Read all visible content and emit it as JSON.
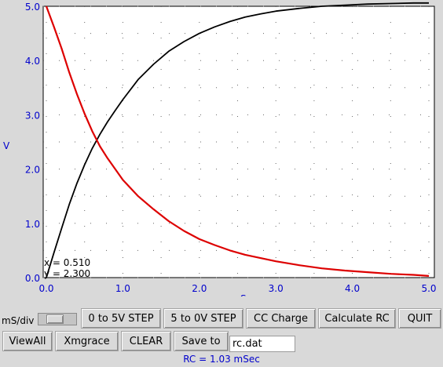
{
  "chart_data": {
    "type": "line",
    "xlabel": "mS",
    "ylabel": "V",
    "xlim": [
      0,
      5
    ],
    "ylim": [
      0,
      5
    ],
    "x_ticks": [
      "0.0",
      "1.0",
      "2.0",
      "3.0",
      "4.0",
      "5.0"
    ],
    "y_ticks": [
      "0.0",
      "1.0",
      "2.0",
      "3.0",
      "4.0",
      "5.0"
    ],
    "grid": true,
    "series": [
      {
        "color": "#000000",
        "x": [
          0.0,
          0.1,
          0.2,
          0.3,
          0.4,
          0.5,
          0.6,
          0.7,
          0.8,
          0.9,
          1.0,
          1.2,
          1.4,
          1.6,
          1.8,
          2.0,
          2.2,
          2.4,
          2.6,
          2.8,
          3.0,
          3.3,
          3.6,
          3.9,
          4.2,
          4.5,
          4.8,
          5.0
        ],
        "y": [
          0.0,
          0.46,
          0.91,
          1.35,
          1.74,
          2.08,
          2.38,
          2.64,
          2.87,
          3.08,
          3.28,
          3.65,
          3.93,
          4.17,
          4.35,
          4.5,
          4.62,
          4.72,
          4.8,
          4.86,
          4.91,
          4.96,
          5.0,
          5.02,
          5.04,
          5.05,
          5.06,
          5.06
        ]
      },
      {
        "color": "#dd0000",
        "x": [
          0.0,
          0.1,
          0.2,
          0.3,
          0.4,
          0.5,
          0.6,
          0.7,
          0.8,
          0.9,
          1.0,
          1.2,
          1.4,
          1.6,
          1.8,
          2.0,
          2.2,
          2.4,
          2.6,
          2.8,
          3.0,
          3.3,
          3.6,
          3.9,
          4.2,
          4.5,
          4.8,
          5.0
        ],
        "y": [
          5.0,
          4.62,
          4.22,
          3.78,
          3.38,
          3.02,
          2.7,
          2.42,
          2.2,
          2.0,
          1.8,
          1.5,
          1.26,
          1.04,
          0.86,
          0.71,
          0.6,
          0.5,
          0.42,
          0.36,
          0.3,
          0.23,
          0.17,
          0.13,
          0.1,
          0.07,
          0.05,
          0.03
        ]
      }
    ]
  },
  "readout": {
    "x_text": "x = 0.510",
    "y_text": "y = 2.300"
  },
  "controls": {
    "ms_div_label": "mS/div",
    "step_up": "0 to 5V STEP",
    "step_down": "5 to 0V STEP",
    "cc_charge": "CC Charge",
    "calc_rc": "Calculate RC",
    "quit": "QUIT",
    "view_all": "ViewAll",
    "xmgrace": "Xmgrace",
    "clear": "CLEAR",
    "save_to": "Save to",
    "filename": "rc.dat"
  },
  "result": {
    "rc_text": "RC =  1.03 mSec"
  }
}
